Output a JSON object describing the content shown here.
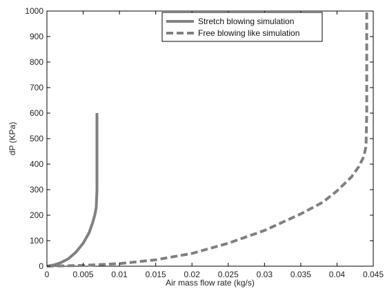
{
  "chart_data": {
    "type": "line",
    "xlabel": "Air mass flow rate (kg/s)",
    "ylabel": "dP (KPa)",
    "xlim": [
      0,
      0.045
    ],
    "ylim": [
      0,
      1000
    ],
    "xticks": [
      0,
      0.005,
      0.01,
      0.015,
      0.02,
      0.025,
      0.03,
      0.035,
      0.04,
      0.045
    ],
    "xtick_labels": [
      "0",
      "0.005",
      "0.01",
      "0.015",
      "0.02",
      "0.025",
      "0.03",
      "0.035",
      "0.04",
      "0.045"
    ],
    "yticks": [
      0,
      100,
      200,
      300,
      400,
      500,
      600,
      700,
      800,
      900,
      1000
    ],
    "ytick_labels": [
      "0",
      "100",
      "200",
      "300",
      "400",
      "500",
      "600",
      "700",
      "800",
      "900",
      "1000"
    ],
    "grid": false,
    "legend_position": "top-right",
    "series": [
      {
        "name": "Stretch blowing simulation",
        "style": "solid",
        "color": "#808080",
        "x": [
          0,
          0.001,
          0.002,
          0.003,
          0.004,
          0.005,
          0.0058,
          0.0063,
          0.0066,
          0.0068,
          0.0069,
          0.0069,
          0.0069
        ],
        "y": [
          0,
          5,
          15,
          30,
          55,
          90,
          130,
          170,
          200,
          230,
          300,
          450,
          600
        ]
      },
      {
        "name": "Free blowing like simulation",
        "style": "dashed",
        "color": "#808080",
        "x": [
          0,
          0.005,
          0.01,
          0.015,
          0.02,
          0.025,
          0.03,
          0.035,
          0.038,
          0.04,
          0.042,
          0.043,
          0.0437,
          0.044,
          0.0441,
          0.0441,
          0.0441
        ],
        "y": [
          0,
          3,
          10,
          25,
          50,
          90,
          140,
          205,
          250,
          295,
          350,
          390,
          430,
          470,
          600,
          800,
          1000
        ]
      }
    ]
  }
}
